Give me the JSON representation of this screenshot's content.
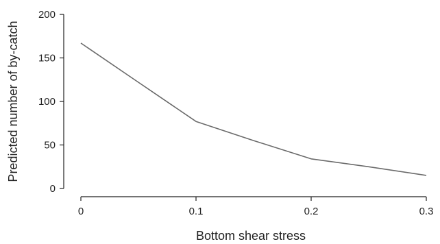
{
  "chart_data": {
    "type": "line",
    "xlabel": "Bottom shear stress",
    "ylabel": "Predicted number of by-catch",
    "xlim": [
      0,
      0.3
    ],
    "ylim": [
      0,
      200
    ],
    "x_ticks": [
      0,
      0.1,
      0.2,
      0.3
    ],
    "x_tick_labels": [
      "0",
      "0.1",
      "0.2",
      "0.3"
    ],
    "y_ticks": [
      0,
      50,
      100,
      150,
      200
    ],
    "y_tick_labels": [
      "0",
      "50",
      "100",
      "150",
      "200"
    ],
    "grid": false,
    "colors": {
      "line": "#6a6a6a",
      "axis": "#222222"
    },
    "series": [
      {
        "x": [
          0,
          0.05,
          0.1,
          0.15,
          0.2,
          0.25,
          0.3
        ],
        "values": [
          167,
          122,
          77,
          55,
          34,
          25,
          15
        ]
      }
    ]
  }
}
